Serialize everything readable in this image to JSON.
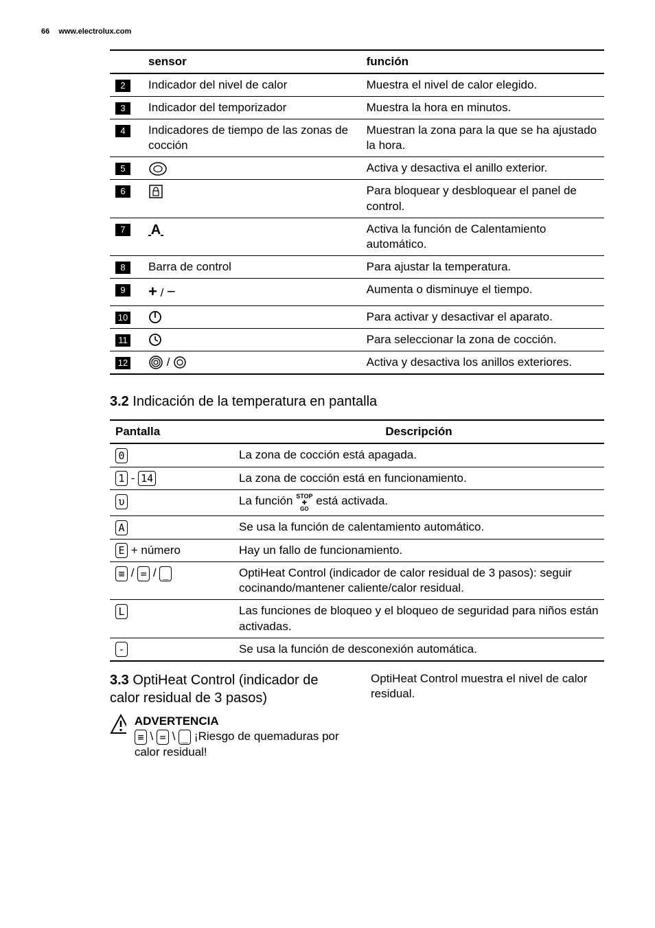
{
  "header": {
    "page": "66",
    "url": "www.electrolux.com"
  },
  "table1": {
    "headers": [
      "",
      "sensor",
      "función"
    ],
    "rows": [
      {
        "n": "2",
        "sensor_text": "Indicador del nivel de calor",
        "func": "Muestra el nivel de calor elegido.",
        "icon": ""
      },
      {
        "n": "3",
        "sensor_text": "Indicador del temporizador",
        "func": "Muestra la hora en minutos.",
        "icon": ""
      },
      {
        "n": "4",
        "sensor_text": "Indicadores de tiempo de las zonas de cocción",
        "func": "Muestran la zona para la que se ha ajustado la hora.",
        "icon": ""
      },
      {
        "n": "5",
        "sensor_text": "",
        "func": "Activa y desactiva el anillo exterior.",
        "icon": "ring-single"
      },
      {
        "n": "6",
        "sensor_text": "",
        "func": "Para bloquear y desbloquear el panel de control.",
        "icon": "lock"
      },
      {
        "n": "7",
        "sensor_text": "",
        "func": "Activa la función de Calentamiento automático.",
        "icon": "auto-a"
      },
      {
        "n": "8",
        "sensor_text": "Barra de control",
        "func": "Para ajustar la temperatura.",
        "icon": ""
      },
      {
        "n": "9",
        "sensor_text": "",
        "func": "Aumenta o disminuye el tiempo.",
        "icon": "plus-minus"
      },
      {
        "n": "10",
        "sensor_text": "",
        "func": "Para activar y desactivar el aparato.",
        "icon": "power"
      },
      {
        "n": "11",
        "sensor_text": "",
        "func": "Para seleccionar la zona de cocción.",
        "icon": "clock"
      },
      {
        "n": "12",
        "sensor_text": "",
        "func": "Activa y desactiva los anillos exteriores.",
        "icon": "rings-double"
      }
    ]
  },
  "section32": {
    "num": "3.2",
    "title": "Indicación de la temperatura en pantalla"
  },
  "table2": {
    "headers": [
      "Pantalla",
      "Descripción"
    ],
    "rows": [
      {
        "disp": "0",
        "desc": "La zona de cocción está apagada."
      },
      {
        "disp": "1-14",
        "desc": "La zona de cocción está en funcionamiento."
      },
      {
        "disp": "u",
        "desc_pre": "La función ",
        "desc_post": " está activada.",
        "stopgo": true
      },
      {
        "disp": "A",
        "desc": "Se usa la función de calentamiento automático."
      },
      {
        "disp": "E+num",
        "label_after": " + número",
        "desc": "Hay un fallo de funcionamiento."
      },
      {
        "disp": "three-bars",
        "desc": "OptiHeat Control (indicador de calor residual de 3 pasos): seguir cocinando/mantener caliente/calor residual."
      },
      {
        "disp": "L",
        "desc": "Las funciones de bloqueo y el bloqueo de seguridad para niños están activadas."
      },
      {
        "disp": "dash",
        "desc": "Se usa la función de desconexión automática."
      }
    ]
  },
  "section33": {
    "num": "3.3",
    "title": "OptiHeat Control (indicador de calor residual de 3 pasos)"
  },
  "rightcol": "OptiHeat Control muestra el nivel de calor residual.",
  "warning": {
    "title": "ADVERTENCIA",
    "text": " ¡Riesgo de quemaduras por calor residual!"
  }
}
